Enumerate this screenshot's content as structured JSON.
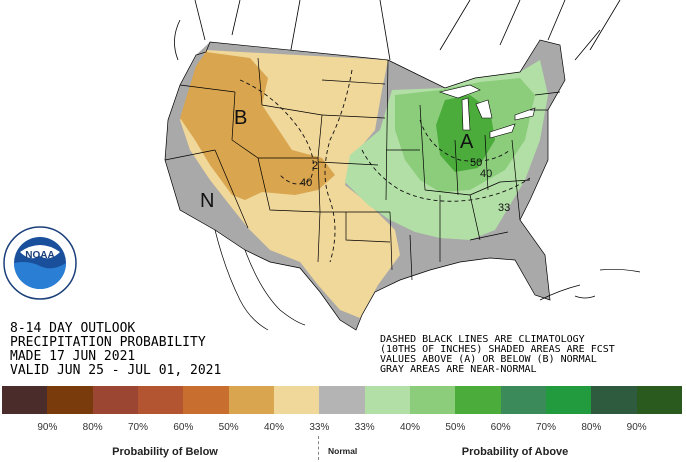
{
  "title_lines": {
    "line1": "8-14 DAY OUTLOOK",
    "line2": "PRECIPITATION PROBABILITY",
    "line3": "MADE  17 JUN 2021",
    "line4": "VALID  JUN 25 - JUL 01, 2021"
  },
  "notes": {
    "line1": "DASHED BLACK LINES ARE CLIMATOLOGY",
    "line2": "(10THS OF INCHES) SHADED AREAS ARE FCST",
    "line3": "VALUES ABOVE (A) OR BELOW (B) NORMAL",
    "line4": "GRAY AREAS ARE NEAR-NORMAL"
  },
  "map_labels": {
    "below_letter": "B",
    "above_letter": "A",
    "normal_letter": "N",
    "contour_2": "2",
    "contour_40_west": "40",
    "contour_50": "50",
    "contour_40_east": "40",
    "contour_33": "33"
  },
  "legend": {
    "swatches": [
      "#4a2c2a",
      "#7a3b0c",
      "#9b4632",
      "#b25530",
      "#c86e2e",
      "#d9a54f",
      "#f0d79a",
      "#b4b4b4",
      "#b2dfa6",
      "#8ccd7c",
      "#4bac3c",
      "#3a8a5a",
      "#229a3e",
      "#2e5a3e",
      "#2a5a1e"
    ],
    "ticks": [
      "90%",
      "80%",
      "70%",
      "60%",
      "50%",
      "40%",
      "33%",
      "33%",
      "40%",
      "50%",
      "60%",
      "70%",
      "80%",
      "90%"
    ],
    "below_title": "Probability of Below",
    "normal_title": "Normal",
    "above_title": "Probability of Above"
  },
  "logo": {
    "text": "NOAA",
    "ring_text": "NATIONAL OCEANIC AND ATMOSPHERIC ADMINISTRATION · U.S. DEPARTMENT OF COMMERCE"
  },
  "colors": {
    "below_light": "#f0d79a",
    "below_mid": "#d9a54f",
    "near_normal": "#a9a9a9",
    "above_light": "#b2dfa6",
    "above_mid": "#8ccd7c",
    "above_dark": "#4bac3c"
  }
}
